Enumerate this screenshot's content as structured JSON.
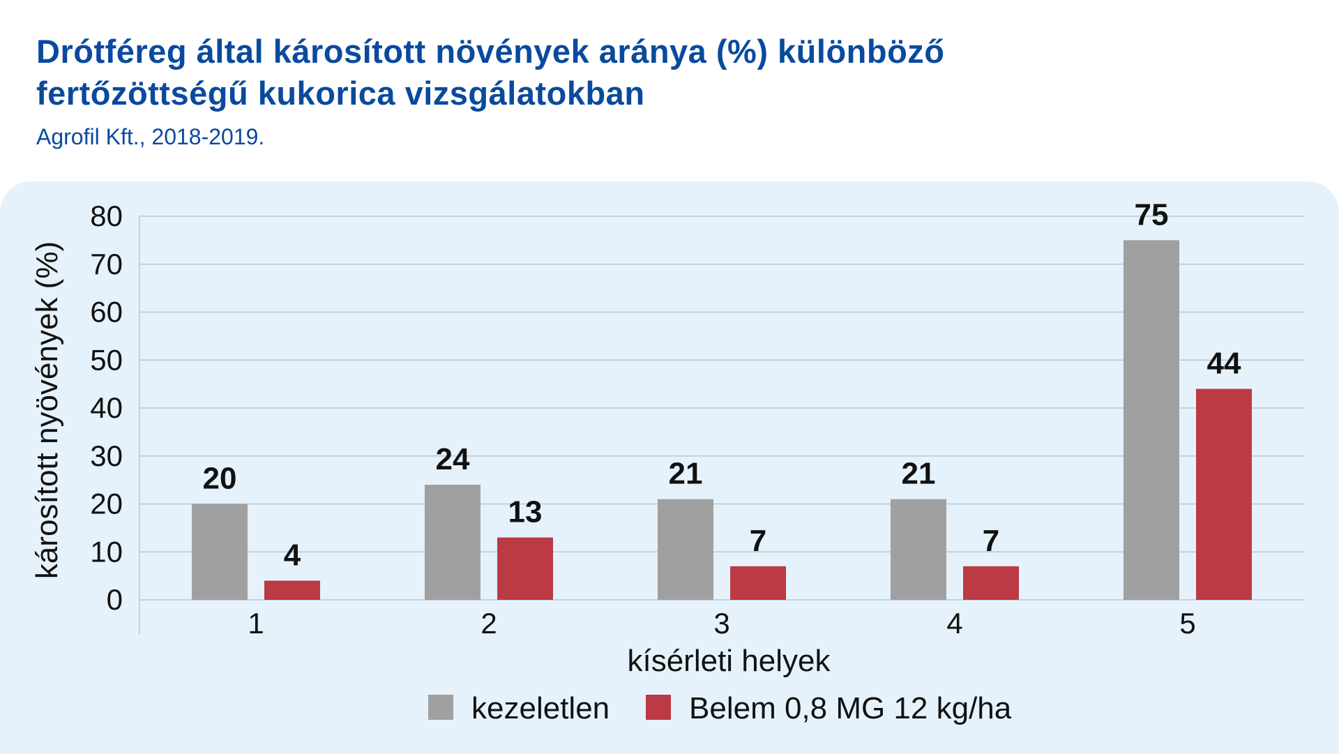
{
  "title_lines": [
    "Drótféreg által károsított növények aránya (%) különböző",
    "fertőzöttségű kukorica vizsgálatokban"
  ],
  "subtitle": "Agrofil Kft., 2018-2019.",
  "colors": {
    "title": "#0a4a9e",
    "panel": "#e6f2fb",
    "grid": "#b9c7d3",
    "series_untreated": "#a0a0a0",
    "series_treated": "#bb3a44"
  },
  "chart_data": {
    "type": "bar",
    "categories": [
      "1",
      "2",
      "3",
      "4",
      "5"
    ],
    "series": [
      {
        "name": "kezeletlen",
        "values": [
          20,
          24,
          21,
          21,
          75
        ],
        "color": "#a0a0a0"
      },
      {
        "name": "Belem 0,8 MG 12 kg/ha",
        "values": [
          4,
          13,
          7,
          7,
          44
        ],
        "color": "#bb3a44"
      }
    ],
    "xlabel": "kísérleti helyek",
    "ylabel": "károsított nyövények (%)",
    "ylim": [
      0,
      80
    ],
    "yticks": [
      0,
      10,
      20,
      30,
      40,
      50,
      60,
      70,
      80
    ],
    "grid": true,
    "data_labels": true,
    "legend_position": "bottom"
  }
}
